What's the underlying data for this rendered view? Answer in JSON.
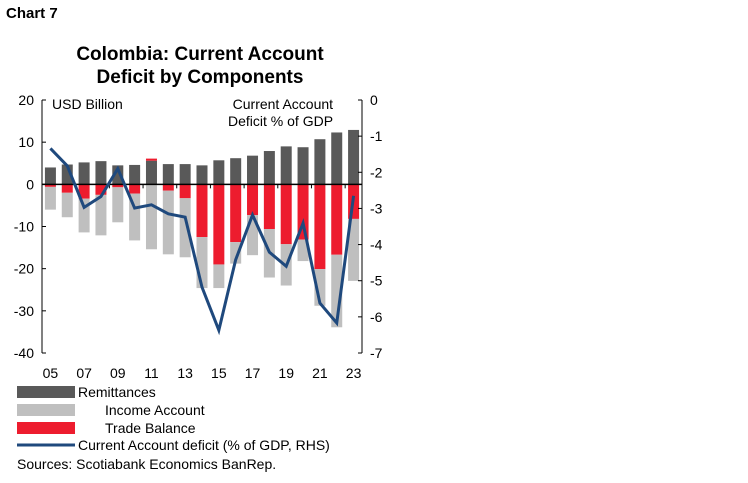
{
  "header": {
    "chart_label": "Chart 7"
  },
  "chart_data": {
    "type": "bar",
    "title": [
      "Colombia: Current Account",
      "Deficit by Components"
    ],
    "left_axis_label": "USD Billion",
    "right_axis_label": [
      "Current Account",
      "Deficit % of GDP"
    ],
    "categories": [
      "05",
      "06",
      "07",
      "08",
      "09",
      "10",
      "11",
      "12",
      "13",
      "14",
      "15",
      "16",
      "17",
      "18",
      "19",
      "20",
      "21",
      "22",
      "23"
    ],
    "x_tick_labels": [
      "05",
      "07",
      "09",
      "11",
      "13",
      "15",
      "17",
      "19",
      "21",
      "23"
    ],
    "ylim": [
      -40,
      20
    ],
    "y_ticks": [
      20,
      10,
      0,
      -10,
      -20,
      -30,
      -40
    ],
    "y2lim": [
      -7,
      0
    ],
    "y2_ticks": [
      0,
      -1,
      -2,
      -3,
      -4,
      -5,
      -6,
      -7
    ],
    "series": [
      {
        "name": "Remittances",
        "type": "bar",
        "color": "#595959",
        "values": [
          4.0,
          4.7,
          5.2,
          5.5,
          4.5,
          4.6,
          5.6,
          4.8,
          4.8,
          4.5,
          5.7,
          6.2,
          6.8,
          7.9,
          9.0,
          8.8,
          10.7,
          12.3,
          12.9
        ]
      },
      {
        "name": "Income Account",
        "type": "bar",
        "color": "#bfbfbf",
        "values": [
          -5.4,
          -5.8,
          -8.0,
          -9.6,
          -8.3,
          -11.1,
          -15.4,
          -15.1,
          -14.0,
          -12.1,
          -5.6,
          -5.1,
          -9.5,
          -11.5,
          -9.8,
          -5.1,
          -8.7,
          -17.2,
          -14.7
        ]
      },
      {
        "name": "Trade Balance",
        "type": "bar",
        "color": "#ed1c2e",
        "values": [
          -0.6,
          -2.0,
          -3.4,
          -2.5,
          -0.7,
          -2.2,
          0.5,
          -1.5,
          -3.3,
          -12.5,
          -19.0,
          -13.7,
          -7.3,
          -10.6,
          -14.2,
          -13.1,
          -20.1,
          -16.7,
          -8.2
        ]
      },
      {
        "name": "Current Account deficit (% of GDP, RHS)",
        "type": "line",
        "axis": "right",
        "color": "#1f497d",
        "values": [
          -1.34,
          -1.82,
          -2.97,
          -2.67,
          -1.9,
          -2.99,
          -2.9,
          -3.15,
          -3.24,
          -5.18,
          -6.37,
          -4.42,
          -3.18,
          -4.21,
          -4.6,
          -3.41,
          -5.62,
          -6.17,
          -2.65
        ]
      }
    ],
    "legend_position": "bottom-left",
    "grid": false
  },
  "footer": {
    "sources": "Sources: Scotiabank Economics BanRep."
  }
}
